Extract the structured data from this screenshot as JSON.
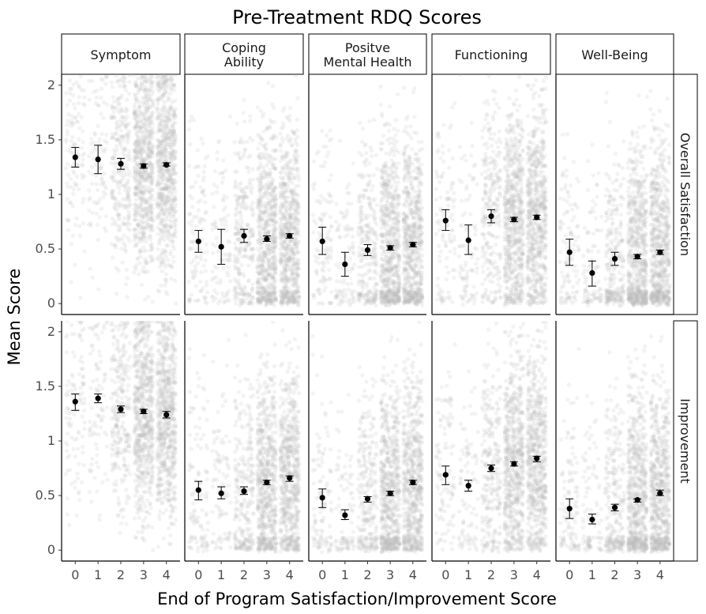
{
  "chart_data": {
    "type": "scatter",
    "title": "Pre-Treatment RDQ Scores",
    "xlabel": "End of Program Satisfaction/Improvement Score",
    "ylabel": "Mean Score",
    "x_ticks": [
      "0",
      "1",
      "2",
      "3",
      "4"
    ],
    "y_ticks": [
      {
        "value": 0,
        "label": "0"
      },
      {
        "value": 0.5,
        "label": "0.5"
      },
      {
        "value": 1,
        "label": "1"
      },
      {
        "value": 1.5,
        "label": "1.5"
      },
      {
        "value": 2,
        "label": "2"
      }
    ],
    "ylim": [
      -0.1,
      2.1
    ],
    "facet_columns": [
      {
        "label": "Symptom"
      },
      {
        "label": "Coping\nAbility"
      },
      {
        "label": "Positve\nMental Health"
      },
      {
        "label": "Functioning"
      },
      {
        "label": "Well-Being"
      }
    ],
    "facet_rows": [
      {
        "label": "Overall Satisfaction"
      },
      {
        "label": "Improvement"
      }
    ],
    "colors": {
      "points": "#bebebe",
      "mean": "#000000",
      "strip_border": "#000000"
    },
    "panels": [
      {
        "row": 0,
        "col": 0,
        "means": [
          {
            "x": 0,
            "mean": 1.34,
            "lo": 1.25,
            "hi": 1.43
          },
          {
            "x": 1,
            "mean": 1.32,
            "lo": 1.19,
            "hi": 1.45
          },
          {
            "x": 2,
            "mean": 1.28,
            "lo": 1.23,
            "hi": 1.33
          },
          {
            "x": 3,
            "mean": 1.26,
            "lo": 1.24,
            "hi": 1.28
          },
          {
            "x": 4,
            "mean": 1.27,
            "lo": 1.26,
            "hi": 1.29
          }
        ]
      },
      {
        "row": 0,
        "col": 1,
        "means": [
          {
            "x": 0,
            "mean": 0.57,
            "lo": 0.47,
            "hi": 0.67
          },
          {
            "x": 1,
            "mean": 0.52,
            "lo": 0.36,
            "hi": 0.68
          },
          {
            "x": 2,
            "mean": 0.62,
            "lo": 0.56,
            "hi": 0.68
          },
          {
            "x": 3,
            "mean": 0.59,
            "lo": 0.57,
            "hi": 0.62
          },
          {
            "x": 4,
            "mean": 0.62,
            "lo": 0.6,
            "hi": 0.64
          }
        ]
      },
      {
        "row": 0,
        "col": 2,
        "means": [
          {
            "x": 0,
            "mean": 0.57,
            "lo": 0.45,
            "hi": 0.7
          },
          {
            "x": 1,
            "mean": 0.36,
            "lo": 0.25,
            "hi": 0.47
          },
          {
            "x": 2,
            "mean": 0.49,
            "lo": 0.44,
            "hi": 0.54
          },
          {
            "x": 3,
            "mean": 0.51,
            "lo": 0.49,
            "hi": 0.53
          },
          {
            "x": 4,
            "mean": 0.54,
            "lo": 0.52,
            "hi": 0.56
          }
        ]
      },
      {
        "row": 0,
        "col": 3,
        "means": [
          {
            "x": 0,
            "mean": 0.76,
            "lo": 0.67,
            "hi": 0.86
          },
          {
            "x": 1,
            "mean": 0.58,
            "lo": 0.45,
            "hi": 0.72
          },
          {
            "x": 2,
            "mean": 0.8,
            "lo": 0.74,
            "hi": 0.86
          },
          {
            "x": 3,
            "mean": 0.77,
            "lo": 0.75,
            "hi": 0.79
          },
          {
            "x": 4,
            "mean": 0.79,
            "lo": 0.77,
            "hi": 0.81
          }
        ]
      },
      {
        "row": 0,
        "col": 4,
        "means": [
          {
            "x": 0,
            "mean": 0.47,
            "lo": 0.35,
            "hi": 0.59
          },
          {
            "x": 1,
            "mean": 0.28,
            "lo": 0.16,
            "hi": 0.39
          },
          {
            "x": 2,
            "mean": 0.41,
            "lo": 0.35,
            "hi": 0.47
          },
          {
            "x": 3,
            "mean": 0.43,
            "lo": 0.41,
            "hi": 0.45
          },
          {
            "x": 4,
            "mean": 0.47,
            "lo": 0.45,
            "hi": 0.49
          }
        ]
      },
      {
        "row": 1,
        "col": 0,
        "means": [
          {
            "x": 0,
            "mean": 1.36,
            "lo": 1.28,
            "hi": 1.43
          },
          {
            "x": 1,
            "mean": 1.39,
            "lo": 1.35,
            "hi": 1.43
          },
          {
            "x": 2,
            "mean": 1.29,
            "lo": 1.26,
            "hi": 1.32
          },
          {
            "x": 3,
            "mean": 1.27,
            "lo": 1.25,
            "hi": 1.29
          },
          {
            "x": 4,
            "mean": 1.24,
            "lo": 1.21,
            "hi": 1.27
          }
        ]
      },
      {
        "row": 1,
        "col": 1,
        "means": [
          {
            "x": 0,
            "mean": 0.55,
            "lo": 0.46,
            "hi": 0.63
          },
          {
            "x": 1,
            "mean": 0.52,
            "lo": 0.47,
            "hi": 0.58
          },
          {
            "x": 2,
            "mean": 0.54,
            "lo": 0.51,
            "hi": 0.58
          },
          {
            "x": 3,
            "mean": 0.62,
            "lo": 0.6,
            "hi": 0.64
          },
          {
            "x": 4,
            "mean": 0.66,
            "lo": 0.63,
            "hi": 0.68
          }
        ]
      },
      {
        "row": 1,
        "col": 2,
        "means": [
          {
            "x": 0,
            "mean": 0.48,
            "lo": 0.39,
            "hi": 0.56
          },
          {
            "x": 1,
            "mean": 0.32,
            "lo": 0.28,
            "hi": 0.37
          },
          {
            "x": 2,
            "mean": 0.47,
            "lo": 0.44,
            "hi": 0.49
          },
          {
            "x": 3,
            "mean": 0.52,
            "lo": 0.5,
            "hi": 0.54
          },
          {
            "x": 4,
            "mean": 0.62,
            "lo": 0.6,
            "hi": 0.64
          }
        ]
      },
      {
        "row": 1,
        "col": 3,
        "means": [
          {
            "x": 0,
            "mean": 0.69,
            "lo": 0.6,
            "hi": 0.77
          },
          {
            "x": 1,
            "mean": 0.59,
            "lo": 0.54,
            "hi": 0.64
          },
          {
            "x": 2,
            "mean": 0.75,
            "lo": 0.72,
            "hi": 0.78
          },
          {
            "x": 3,
            "mean": 0.79,
            "lo": 0.77,
            "hi": 0.81
          },
          {
            "x": 4,
            "mean": 0.84,
            "lo": 0.81,
            "hi": 0.86
          }
        ]
      },
      {
        "row": 1,
        "col": 4,
        "means": [
          {
            "x": 0,
            "mean": 0.38,
            "lo": 0.29,
            "hi": 0.47
          },
          {
            "x": 1,
            "mean": 0.28,
            "lo": 0.24,
            "hi": 0.33
          },
          {
            "x": 2,
            "mean": 0.39,
            "lo": 0.36,
            "hi": 0.42
          },
          {
            "x": 3,
            "mean": 0.46,
            "lo": 0.44,
            "hi": 0.47
          },
          {
            "x": 4,
            "mean": 0.52,
            "lo": 0.5,
            "hi": 0.55
          }
        ]
      }
    ]
  }
}
